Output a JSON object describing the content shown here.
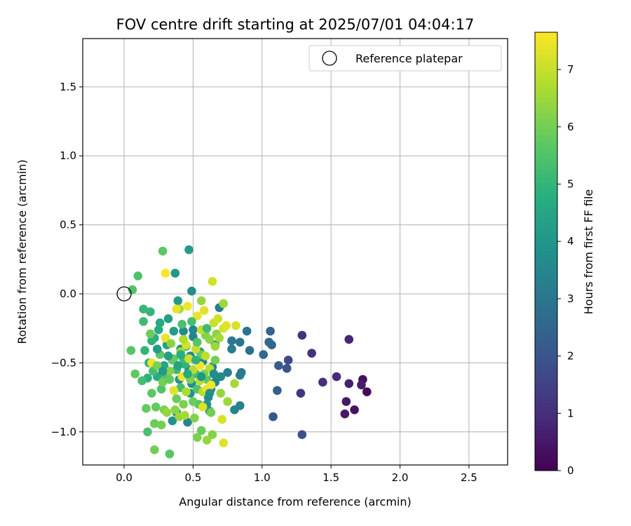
{
  "chart_data": {
    "type": "scatter",
    "title": "FOV centre drift starting at 2025/07/01 04:04:17",
    "xlabel": "Angular distance from reference (arcmin)",
    "ylabel": "Rotation from reference (arcmin)",
    "xlim": [
      -0.3,
      2.78
    ],
    "ylim": [
      -1.24,
      1.85
    ],
    "xticks": [
      0.0,
      0.5,
      1.0,
      1.5,
      2.0,
      2.5
    ],
    "xtick_labels": [
      "0.0",
      "0.5",
      "1.0",
      "1.5",
      "2.0",
      "2.5"
    ],
    "yticks": [
      -1.0,
      -0.5,
      0.0,
      0.5,
      1.0,
      1.5
    ],
    "ytick_labels": [
      "−1.0",
      "−0.5",
      "0.0",
      "0.5",
      "1.0",
      "1.5"
    ],
    "grid": true,
    "legend": {
      "label": "Reference platepar",
      "position": "top-right"
    },
    "reference_point": {
      "x": 0.0,
      "y": 0.0
    },
    "colorbar": {
      "label": "Hours from first FF file",
      "min": 0,
      "max": 7.65,
      "ticks": [
        0,
        1,
        2,
        3,
        4,
        5,
        6,
        7
      ],
      "tick_labels": [
        "0",
        "1",
        "2",
        "3",
        "4",
        "5",
        "6",
        "7"
      ],
      "colormap": "viridis"
    },
    "points": [
      {
        "x": 1.76,
        "y": -0.71,
        "c": 0.1
      },
      {
        "x": 1.73,
        "y": -0.62,
        "c": 0.3
      },
      {
        "x": 1.67,
        "y": -0.84,
        "c": 0.4
      },
      {
        "x": 1.6,
        "y": -0.87,
        "c": 0.5
      },
      {
        "x": 1.61,
        "y": -0.78,
        "c": 0.55
      },
      {
        "x": 1.72,
        "y": -0.66,
        "c": 0.6
      },
      {
        "x": 1.63,
        "y": -0.65,
        "c": 0.7
      },
      {
        "x": 1.63,
        "y": -0.33,
        "c": 0.8
      },
      {
        "x": 1.54,
        "y": -0.6,
        "c": 0.9
      },
      {
        "x": 1.44,
        "y": -0.64,
        "c": 1.0
      },
      {
        "x": 1.36,
        "y": -0.43,
        "c": 1.05
      },
      {
        "x": 1.29,
        "y": -0.3,
        "c": 1.1
      },
      {
        "x": 1.28,
        "y": -0.72,
        "c": 1.15
      },
      {
        "x": 1.29,
        "y": -1.02,
        "c": 1.8
      },
      {
        "x": 1.19,
        "y": -0.48,
        "c": 1.7
      },
      {
        "x": 1.18,
        "y": -0.54,
        "c": 1.9
      },
      {
        "x": 1.12,
        "y": -0.52,
        "c": 2.2
      },
      {
        "x": 1.11,
        "y": -0.7,
        "c": 2.3
      },
      {
        "x": 1.08,
        "y": -0.89,
        "c": 2.1
      },
      {
        "x": 1.06,
        "y": -0.27,
        "c": 2.4
      },
      {
        "x": 1.07,
        "y": -0.37,
        "c": 2.5
      },
      {
        "x": 1.05,
        "y": -0.35,
        "c": 2.6
      },
      {
        "x": 1.01,
        "y": -0.44,
        "c": 2.6
      },
      {
        "x": 0.91,
        "y": -0.41,
        "c": 2.8
      },
      {
        "x": 0.89,
        "y": -0.27,
        "c": 2.9
      },
      {
        "x": 0.84,
        "y": -0.35,
        "c": 3.0
      },
      {
        "x": 0.85,
        "y": -0.57,
        "c": 3.1
      },
      {
        "x": 0.84,
        "y": -0.59,
        "c": 3.2
      },
      {
        "x": 0.84,
        "y": -0.81,
        "c": 3.3
      },
      {
        "x": 0.8,
        "y": -0.84,
        "c": 3.4
      },
      {
        "x": 0.78,
        "y": -0.34,
        "c": 3.1
      },
      {
        "x": 0.78,
        "y": -0.4,
        "c": 3.2
      },
      {
        "x": 0.75,
        "y": -0.57,
        "c": 3.3
      },
      {
        "x": 0.69,
        "y": -0.1,
        "c": 3.2
      },
      {
        "x": 0.66,
        "y": -0.37,
        "c": 3.3
      },
      {
        "x": 0.64,
        "y": -0.53,
        "c": 3.4
      },
      {
        "x": 0.66,
        "y": -0.64,
        "c": 3.5
      },
      {
        "x": 0.63,
        "y": -0.69,
        "c": 3.6
      },
      {
        "x": 0.61,
        "y": -0.75,
        "c": 3.6
      },
      {
        "x": 0.62,
        "y": -0.85,
        "c": 3.8
      },
      {
        "x": 0.6,
        "y": -0.8,
        "c": 3.9
      },
      {
        "x": 0.57,
        "y": -0.49,
        "c": 3.5
      },
      {
        "x": 0.55,
        "y": -0.42,
        "c": 3.7
      },
      {
        "x": 0.5,
        "y": -0.26,
        "c": 3.5
      },
      {
        "x": 0.49,
        "y": 0.02,
        "c": 3.7
      },
      {
        "x": 0.5,
        "y": -0.31,
        "c": 3.4
      },
      {
        "x": 0.48,
        "y": -0.45,
        "c": 3.6
      },
      {
        "x": 0.47,
        "y": -0.55,
        "c": 3.7
      },
      {
        "x": 0.49,
        "y": -0.65,
        "c": 3.8
      },
      {
        "x": 0.48,
        "y": -0.72,
        "c": 3.9
      },
      {
        "x": 0.46,
        "y": -0.93,
        "c": 3.5
      },
      {
        "x": 0.43,
        "y": -0.27,
        "c": 3.6
      },
      {
        "x": 0.41,
        "y": -0.4,
        "c": 3.8
      },
      {
        "x": 0.4,
        "y": -0.62,
        "c": 3.9
      },
      {
        "x": 0.38,
        "y": -0.86,
        "c": 3.7
      },
      {
        "x": 0.35,
        "y": -0.92,
        "c": 3.9
      },
      {
        "x": 0.37,
        "y": 0.15,
        "c": 4.0
      },
      {
        "x": 0.47,
        "y": 0.32,
        "c": 4.2
      },
      {
        "x": 0.39,
        "y": -0.05,
        "c": 4.1
      },
      {
        "x": 0.36,
        "y": -0.27,
        "c": 4.2
      },
      {
        "x": 0.32,
        "y": -0.18,
        "c": 4.3
      },
      {
        "x": 0.31,
        "y": -0.37,
        "c": 4.4
      },
      {
        "x": 0.29,
        "y": -0.52,
        "c": 4.5
      },
      {
        "x": 0.26,
        "y": -0.21,
        "c": 4.6
      },
      {
        "x": 0.25,
        "y": -0.26,
        "c": 4.7
      },
      {
        "x": 0.24,
        "y": -0.6,
        "c": 4.7
      },
      {
        "x": 0.22,
        "y": -0.32,
        "c": 4.8
      },
      {
        "x": 0.2,
        "y": -0.34,
        "c": 4.9
      },
      {
        "x": 0.19,
        "y": -0.13,
        "c": 5.0
      },
      {
        "x": 0.18,
        "y": -0.5,
        "c": 4.8
      },
      {
        "x": 0.17,
        "y": -0.61,
        "c": 4.9
      },
      {
        "x": 0.15,
        "y": -0.41,
        "c": 5.0
      },
      {
        "x": 0.14,
        "y": -0.11,
        "c": 5.1
      },
      {
        "x": 0.14,
        "y": -0.2,
        "c": 5.2
      },
      {
        "x": 0.13,
        "y": -0.63,
        "c": 5.3
      },
      {
        "x": 0.17,
        "y": -1.0,
        "c": 5.4
      },
      {
        "x": 0.1,
        "y": 0.13,
        "c": 5.5
      },
      {
        "x": 0.06,
        "y": 0.03,
        "c": 5.5
      },
      {
        "x": 0.05,
        "y": -0.41,
        "c": 5.6
      },
      {
        "x": 0.08,
        "y": -0.58,
        "c": 5.7
      },
      {
        "x": 0.2,
        "y": -0.72,
        "c": 5.7
      },
      {
        "x": 0.16,
        "y": -0.83,
        "c": 5.8
      },
      {
        "x": 0.22,
        "y": -0.94,
        "c": 5.9
      },
      {
        "x": 0.22,
        "y": -1.13,
        "c": 6.0
      },
      {
        "x": 0.33,
        "y": -1.16,
        "c": 5.6
      },
      {
        "x": 0.28,
        "y": 0.31,
        "c": 5.7
      },
      {
        "x": 0.23,
        "y": -0.82,
        "c": 5.8
      },
      {
        "x": 0.27,
        "y": -0.95,
        "c": 6.0
      },
      {
        "x": 0.29,
        "y": -0.84,
        "c": 6.1
      },
      {
        "x": 0.3,
        "y": -0.59,
        "c": 5.4
      },
      {
        "x": 0.27,
        "y": -0.69,
        "c": 5.5
      },
      {
        "x": 0.35,
        "y": -0.48,
        "c": 5.6
      },
      {
        "x": 0.38,
        "y": -0.55,
        "c": 5.2
      },
      {
        "x": 0.41,
        "y": -0.68,
        "c": 5.3
      },
      {
        "x": 0.44,
        "y": -0.51,
        "c": 5.0
      },
      {
        "x": 0.45,
        "y": -0.38,
        "c": 5.1
      },
      {
        "x": 0.43,
        "y": -0.47,
        "c": 5.2
      },
      {
        "x": 0.52,
        "y": -0.58,
        "c": 5.4
      },
      {
        "x": 0.53,
        "y": -0.69,
        "c": 5.5
      },
      {
        "x": 0.54,
        "y": -0.8,
        "c": 5.6
      },
      {
        "x": 0.56,
        "y": -0.99,
        "c": 5.9
      },
      {
        "x": 0.53,
        "y": -1.04,
        "c": 6.1
      },
      {
        "x": 0.6,
        "y": -0.62,
        "c": 5.7
      },
      {
        "x": 0.63,
        "y": -0.86,
        "c": 6.0
      },
      {
        "x": 0.64,
        "y": -1.02,
        "c": 6.2
      },
      {
        "x": 0.6,
        "y": -1.06,
        "c": 6.4
      },
      {
        "x": 0.56,
        "y": -0.44,
        "c": 5.8
      },
      {
        "x": 0.59,
        "y": -0.3,
        "c": 6.2
      },
      {
        "x": 0.62,
        "y": -0.33,
        "c": 6.3
      },
      {
        "x": 0.67,
        "y": -0.29,
        "c": 6.3
      },
      {
        "x": 0.66,
        "y": -0.48,
        "c": 6.0
      },
      {
        "x": 0.7,
        "y": -0.72,
        "c": 6.4
      },
      {
        "x": 0.75,
        "y": -0.78,
        "c": 6.5
      },
      {
        "x": 0.8,
        "y": -0.65,
        "c": 6.6
      },
      {
        "x": 0.72,
        "y": -0.07,
        "c": 6.5
      },
      {
        "x": 0.56,
        "y": -0.05,
        "c": 6.4
      },
      {
        "x": 0.4,
        "y": -0.11,
        "c": 6.5
      },
      {
        "x": 0.41,
        "y": -0.42,
        "c": 6.6
      },
      {
        "x": 0.33,
        "y": -0.56,
        "c": 6.2
      },
      {
        "x": 0.31,
        "y": -0.86,
        "c": 6.4
      },
      {
        "x": 0.37,
        "y": -0.84,
        "c": 6.3
      },
      {
        "x": 0.4,
        "y": -0.89,
        "c": 6.5
      },
      {
        "x": 0.44,
        "y": -0.88,
        "c": 6.6
      },
      {
        "x": 0.45,
        "y": -0.71,
        "c": 6.7
      },
      {
        "x": 0.5,
        "y": -0.55,
        "c": 6.8
      },
      {
        "x": 0.55,
        "y": -0.63,
        "c": 6.9
      },
      {
        "x": 0.57,
        "y": -0.71,
        "c": 6.8
      },
      {
        "x": 0.56,
        "y": -0.26,
        "c": 6.9
      },
      {
        "x": 0.65,
        "y": -0.21,
        "c": 7.0
      },
      {
        "x": 0.64,
        "y": 0.09,
        "c": 7.1
      },
      {
        "x": 0.68,
        "y": -0.18,
        "c": 7.1
      },
      {
        "x": 0.72,
        "y": -0.25,
        "c": 7.2
      },
      {
        "x": 0.74,
        "y": -0.23,
        "c": 7.3
      },
      {
        "x": 0.81,
        "y": -0.23,
        "c": 7.2
      },
      {
        "x": 0.72,
        "y": -1.08,
        "c": 7.3
      },
      {
        "x": 0.71,
        "y": -0.91,
        "c": 7.2
      },
      {
        "x": 0.58,
        "y": -0.12,
        "c": 7.3
      },
      {
        "x": 0.53,
        "y": -0.16,
        "c": 7.4
      },
      {
        "x": 0.46,
        "y": -0.09,
        "c": 7.5
      },
      {
        "x": 0.38,
        "y": -0.11,
        "c": 7.4
      },
      {
        "x": 0.3,
        "y": 0.15,
        "c": 7.6
      },
      {
        "x": 0.3,
        "y": -0.32,
        "c": 7.4
      },
      {
        "x": 0.2,
        "y": -0.5,
        "c": 7.5
      },
      {
        "x": 0.42,
        "y": -0.6,
        "c": 7.5
      },
      {
        "x": 0.36,
        "y": -0.7,
        "c": 7.3
      },
      {
        "x": 0.55,
        "y": -0.52,
        "c": 7.6
      },
      {
        "x": 0.6,
        "y": -0.69,
        "c": 7.4
      },
      {
        "x": 0.57,
        "y": -0.82,
        "c": 7.3
      },
      {
        "x": 0.63,
        "y": -0.66,
        "c": 7.5
      },
      {
        "x": 0.45,
        "y": -0.37,
        "c": 7.2
      },
      {
        "x": 0.47,
        "y": -0.47,
        "c": 7.1
      },
      {
        "x": 0.52,
        "y": -0.4,
        "c": 7.0
      },
      {
        "x": 0.59,
        "y": -0.45,
        "c": 6.9
      },
      {
        "x": 0.62,
        "y": -0.54,
        "c": 6.8
      },
      {
        "x": 0.43,
        "y": -0.33,
        "c": 6.7
      },
      {
        "x": 0.48,
        "y": -0.62,
        "c": 6.1
      },
      {
        "x": 0.5,
        "y": -0.78,
        "c": 5.9
      },
      {
        "x": 0.36,
        "y": -0.47,
        "c": 5.8
      },
      {
        "x": 0.26,
        "y": -0.44,
        "c": 5.7
      },
      {
        "x": 0.21,
        "y": -0.56,
        "c": 5.3
      },
      {
        "x": 0.53,
        "y": -0.35,
        "c": 5.6
      },
      {
        "x": 0.58,
        "y": -0.58,
        "c": 6.2
      },
      {
        "x": 0.66,
        "y": -0.38,
        "c": 6.5
      },
      {
        "x": 0.69,
        "y": -0.32,
        "c": 6.6
      },
      {
        "x": 0.28,
        "y": -0.64,
        "c": 6.0
      },
      {
        "x": 0.24,
        "y": -0.52,
        "c": 6.1
      },
      {
        "x": 0.34,
        "y": -0.36,
        "c": 6.3
      },
      {
        "x": 0.51,
        "y": -0.9,
        "c": 6.2
      },
      {
        "x": 0.43,
        "y": -0.8,
        "c": 6.1
      },
      {
        "x": 0.38,
        "y": -0.76,
        "c": 5.9
      },
      {
        "x": 0.33,
        "y": -0.62,
        "c": 5.8
      },
      {
        "x": 0.19,
        "y": -0.29,
        "c": 5.9
      },
      {
        "x": 0.42,
        "y": -0.22,
        "c": 5.4
      },
      {
        "x": 0.49,
        "y": -0.2,
        "c": 5.3
      },
      {
        "x": 0.6,
        "y": -0.25,
        "c": 5.2
      },
      {
        "x": 0.52,
        "y": -0.48,
        "c": 4.9
      },
      {
        "x": 0.46,
        "y": -0.58,
        "c": 4.6
      },
      {
        "x": 0.41,
        "y": -0.44,
        "c": 4.8
      },
      {
        "x": 0.39,
        "y": -0.52,
        "c": 4.4
      },
      {
        "x": 0.32,
        "y": -0.45,
        "c": 4.3
      },
      {
        "x": 0.28,
        "y": -0.56,
        "c": 4.1
      },
      {
        "x": 0.24,
        "y": -0.4,
        "c": 4.2
      },
      {
        "x": 0.56,
        "y": -0.6,
        "c": 4.0
      },
      {
        "x": 0.62,
        "y": -0.72,
        "c": 3.8
      },
      {
        "x": 0.7,
        "y": -0.6,
        "c": 3.6
      },
      {
        "x": 0.65,
        "y": -0.58,
        "c": 3.7
      }
    ]
  }
}
